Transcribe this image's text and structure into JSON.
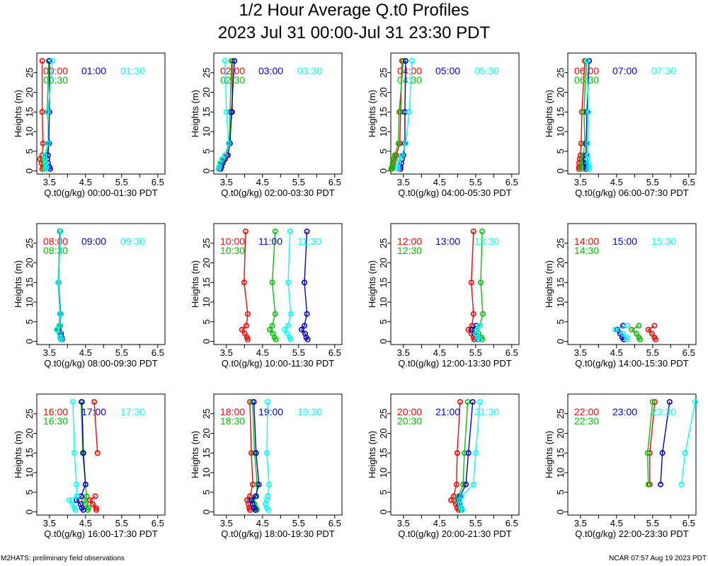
{
  "title": "1/2 Hour Average Q.t0 Profiles",
  "subtitle": "2023 Jul 31 00:00-Jul 31 23:30 PDT",
  "footer": {
    "left": "M2HATS: preliminary field observations",
    "right": "NCAR 07:57 Aug 19 2023 PDT"
  },
  "chart_data": [
    {
      "type": "line",
      "xlabel": "Q.t0(g/kg) 00:00-01:30 PDT",
      "ylabel": "Heights (m)",
      "xlim": [
        3.15,
        6.7
      ],
      "ylim": [
        -0.8,
        30
      ],
      "xticks": [
        3.5,
        4.5,
        5.5,
        6.5
      ],
      "yticks": [
        0,
        5,
        10,
        15,
        20,
        25
      ],
      "y": [
        0.5,
        1,
        2,
        3,
        4,
        7,
        15,
        28
      ],
      "series": [
        {
          "name": "00:00",
          "color": "#ff0000",
          "x": [
            3.3,
            3.32,
            3.28,
            3.24,
            3.3,
            3.32,
            3.3,
            3.3
          ]
        },
        {
          "name": "00:30",
          "color": "#00c400",
          "x": [
            3.36,
            3.4,
            3.36,
            3.34,
            3.4,
            3.5,
            3.44,
            3.48
          ]
        },
        {
          "name": "01:00",
          "color": "#0000cc",
          "x": [
            3.52,
            3.5,
            3.46,
            3.44,
            3.46,
            3.48,
            3.5,
            3.5
          ]
        },
        {
          "name": "01:30",
          "color": "#00ffff",
          "x": [
            3.4,
            3.42,
            3.4,
            3.38,
            3.36,
            3.46,
            3.46,
            3.58
          ]
        }
      ]
    },
    {
      "type": "line",
      "xlabel": "Q.t0(g/kg) 02:00-03:30 PDT",
      "ylabel": "Heights (m)",
      "xlim": [
        3.15,
        6.7
      ],
      "ylim": [
        -0.8,
        30
      ],
      "xticks": [
        3.5,
        4.5,
        5.5,
        6.5
      ],
      "yticks": [
        0,
        5,
        10,
        15,
        20,
        25
      ],
      "y": [
        0.5,
        1,
        2,
        3,
        4,
        7,
        15,
        28
      ],
      "series": [
        {
          "name": "02:00",
          "color": "#ff0000",
          "x": [
            3.3,
            3.32,
            3.36,
            3.42,
            3.5,
            3.56,
            3.66,
            3.66
          ]
        },
        {
          "name": "02:30",
          "color": "#00c400",
          "x": [
            3.28,
            3.3,
            3.34,
            3.4,
            3.46,
            3.58,
            3.6,
            3.64
          ]
        },
        {
          "name": "03:00",
          "color": "#0000cc",
          "x": [
            3.34,
            3.36,
            3.4,
            3.46,
            3.54,
            3.6,
            3.64,
            3.72
          ]
        },
        {
          "name": "03:30",
          "color": "#00ffff",
          "x": [
            3.28,
            3.3,
            3.32,
            3.38,
            3.46,
            3.56,
            3.5,
            3.46
          ]
        }
      ]
    },
    {
      "type": "line",
      "xlabel": "Q.t0(g/kg) 04:00-05:30 PDT",
      "ylabel": "Heights (m)",
      "xlim": [
        3.15,
        6.7
      ],
      "ylim": [
        -0.8,
        30
      ],
      "xticks": [
        3.5,
        4.5,
        5.5,
        6.5
      ],
      "yticks": [
        0,
        5,
        10,
        15,
        20,
        25
      ],
      "y": [
        0.5,
        1,
        2,
        3,
        4,
        7,
        15,
        28
      ],
      "series": [
        {
          "name": "04:00",
          "color": "#ff0000",
          "x": [
            3.18,
            3.2,
            3.22,
            3.24,
            3.3,
            3.4,
            3.42,
            3.46
          ]
        },
        {
          "name": "04:30",
          "color": "#00c400",
          "x": [
            3.16,
            3.18,
            3.2,
            3.22,
            3.26,
            3.36,
            3.38,
            3.5
          ]
        },
        {
          "name": "05:00",
          "color": "#0000cc",
          "x": [
            3.42,
            3.42,
            3.44,
            3.46,
            3.5,
            3.54,
            3.54,
            3.56
          ]
        },
        {
          "name": "05:30",
          "color": "#00ffff",
          "x": [
            3.34,
            3.34,
            3.36,
            3.4,
            3.46,
            3.56,
            3.66,
            3.74
          ]
        }
      ]
    },
    {
      "type": "line",
      "xlabel": "Q.t0(g/kg) 06:00-07:30 PDT",
      "ylabel": "Heights (m)",
      "xlim": [
        3.15,
        6.7
      ],
      "ylim": [
        -0.8,
        30
      ],
      "xticks": [
        3.5,
        4.5,
        5.5,
        6.5
      ],
      "yticks": [
        0,
        5,
        10,
        15,
        20,
        25
      ],
      "y": [
        0.5,
        1,
        2,
        3,
        4,
        7,
        15,
        28
      ],
      "series": [
        {
          "name": "06:00",
          "color": "#ff0000",
          "x": [
            3.46,
            3.46,
            3.46,
            3.48,
            3.5,
            3.52,
            3.54,
            3.62
          ]
        },
        {
          "name": "06:30",
          "color": "#00c400",
          "x": [
            3.54,
            3.54,
            3.56,
            3.56,
            3.58,
            3.62,
            3.6,
            3.66
          ]
        },
        {
          "name": "07:00",
          "color": "#0000cc",
          "x": [
            3.66,
            3.66,
            3.64,
            3.64,
            3.66,
            3.66,
            3.68,
            3.74
          ]
        },
        {
          "name": "07:30",
          "color": "#00ffff",
          "x": [
            3.74,
            3.74,
            3.72,
            3.7,
            3.7,
            3.7,
            3.72,
            3.68
          ]
        }
      ]
    },
    {
      "type": "line",
      "xlabel": "Q.t0(g/kg) 08:00-09:30 PDT",
      "ylabel": "Heights (m)",
      "xlim": [
        3.15,
        6.7
      ],
      "ylim": [
        -0.8,
        30
      ],
      "xticks": [
        3.5,
        4.5,
        5.5,
        6.5
      ],
      "yticks": [
        0,
        5,
        10,
        15,
        20,
        25
      ],
      "y": [
        0.5,
        1,
        2,
        3,
        4,
        7,
        15,
        28
      ],
      "series": [
        {
          "name": "08:00",
          "color": "#ff0000",
          "x": [
            3.84,
            3.82,
            3.8,
            3.72,
            3.78,
            3.8,
            3.75,
            3.8
          ]
        },
        {
          "name": "08:30",
          "color": "#00c400",
          "x": [
            3.82,
            3.8,
            3.78,
            3.73,
            3.77,
            3.79,
            3.74,
            3.79
          ]
        },
        {
          "name": "09:00",
          "color": "#0000cc",
          "x": [
            3.85,
            3.84,
            3.82,
            3.76,
            3.8,
            3.81,
            3.75,
            3.8
          ]
        },
        {
          "name": "09:30",
          "color": "#00ffff",
          "x": [
            3.83,
            3.81,
            3.79,
            3.7,
            3.79,
            3.8,
            3.74,
            3.81
          ]
        }
      ]
    },
    {
      "type": "line",
      "xlabel": "Q.t0(g/kg) 10:00-11:30 PDT",
      "ylabel": "Heights (m)",
      "xlim": [
        3.15,
        6.7
      ],
      "ylim": [
        -0.8,
        30
      ],
      "xticks": [
        3.5,
        4.5,
        5.5,
        6.5
      ],
      "yticks": [
        0,
        5,
        10,
        15,
        20,
        25
      ],
      "y": [
        0.5,
        1,
        2,
        3,
        4,
        7,
        15,
        28
      ],
      "series": [
        {
          "name": "10:00",
          "color": "#ff0000",
          "x": [
            4.09,
            4.07,
            4.01,
            3.93,
            4.05,
            4.09,
            3.99,
            4.03
          ]
        },
        {
          "name": "10:30",
          "color": "#00c400",
          "x": [
            4.87,
            4.83,
            4.79,
            4.7,
            4.77,
            4.85,
            4.77,
            4.85
          ]
        },
        {
          "name": "11:00",
          "color": "#0000cc",
          "x": [
            5.75,
            5.71,
            5.68,
            5.58,
            5.66,
            5.73,
            5.66,
            5.73
          ]
        },
        {
          "name": "11:30",
          "color": "#00ffff",
          "x": [
            5.28,
            5.25,
            5.19,
            5.11,
            5.21,
            5.28,
            5.21,
            5.26
          ]
        }
      ]
    },
    {
      "type": "line",
      "xlabel": "Q.t0(g/kg) 12:00-13:30 PDT",
      "ylabel": "Heights (m)",
      "xlim": [
        3.15,
        6.7
      ],
      "ylim": [
        -0.8,
        30
      ],
      "xticks": [
        3.5,
        4.5,
        5.5,
        6.5
      ],
      "yticks": [
        0,
        5,
        10,
        15,
        20,
        25
      ],
      "y": [
        0.5,
        1,
        2,
        3,
        4,
        7,
        15,
        28
      ],
      "series": [
        {
          "name": "12:00",
          "color": "#ff0000",
          "x": [
            5.46,
            5.44,
            5.38,
            5.3,
            5.4,
            5.44,
            5.38,
            5.44
          ]
        },
        {
          "name": "12:30",
          "color": "#00c400",
          "x": [
            5.68,
            5.66,
            5.58,
            5.52,
            5.62,
            5.7,
            5.64,
            5.68
          ]
        },
        {
          "name": "13:00",
          "color": "#0000cc",
          "x": [
            5.58,
            5.55,
            5.48,
            5.4,
            5.52,
            null,
            null,
            null
          ]
        },
        {
          "name": "13:30",
          "color": "#00ffff",
          "x": [
            5.6,
            5.56,
            5.5,
            5.54,
            5.62,
            null,
            null,
            null
          ]
        }
      ]
    },
    {
      "type": "line",
      "xlabel": "Q.t0(g/kg) 14:00-15:30 PDT",
      "ylabel": "Heights (m)",
      "xlim": [
        3.15,
        6.7
      ],
      "ylim": [
        -0.8,
        30
      ],
      "xticks": [
        3.5,
        4.5,
        5.5,
        6.5
      ],
      "yticks": [
        0,
        5,
        10,
        15,
        20,
        25
      ],
      "y": [
        0.5,
        1,
        2,
        3,
        4,
        7,
        15,
        28
      ],
      "series": [
        {
          "name": "14:00",
          "color": "#ff0000",
          "x": [
            5.58,
            5.55,
            5.48,
            5.38,
            5.55,
            null,
            null,
            null
          ]
        },
        {
          "name": "14:30",
          "color": "#00c400",
          "x": [
            5.15,
            5.12,
            5.05,
            4.92,
            5.12,
            null,
            null,
            null
          ]
        },
        {
          "name": "15:00",
          "color": "#0000cc",
          "x": [
            4.7,
            4.66,
            4.6,
            4.52,
            4.68,
            null,
            null,
            null
          ]
        },
        {
          "name": "15:30",
          "color": "#00ffff",
          "x": [
            4.8,
            4.78,
            4.68,
            4.46,
            4.8,
            null,
            null,
            null
          ]
        }
      ]
    },
    {
      "type": "line",
      "xlabel": "Q.t0(g/kg) 16:00-17:30 PDT",
      "ylabel": "Heights (m)",
      "xlim": [
        3.15,
        6.7
      ],
      "ylim": [
        -0.8,
        30
      ],
      "xticks": [
        3.5,
        4.5,
        5.5,
        6.5
      ],
      "yticks": [
        0,
        5,
        10,
        15,
        20,
        25
      ],
      "y": [
        0.5,
        1,
        2,
        3,
        4,
        7,
        15,
        28
      ],
      "series": [
        {
          "name": "16:00",
          "color": "#ff0000",
          "x": [
            4.8,
            4.79,
            4.7,
            4.62,
            4.77,
            null,
            4.83,
            4.74
          ]
        },
        {
          "name": "16:30",
          "color": "#00c400",
          "x": [
            4.56,
            4.58,
            4.5,
            4.46,
            4.53,
            4.5,
            4.42,
            4.38
          ]
        },
        {
          "name": "17:00",
          "color": "#0000cc",
          "x": [
            4.44,
            4.4,
            4.36,
            4.25,
            4.38,
            4.5,
            4.44,
            4.4
          ]
        },
        {
          "name": "17:30",
          "color": "#00ffff",
          "x": [
            4.22,
            4.19,
            4.14,
            4.05,
            4.26,
            4.25,
            4.19,
            4.15
          ]
        }
      ]
    },
    {
      "type": "line",
      "xlabel": "Q.t0(g/kg) 18:00-19:30 PDT",
      "ylabel": "Heights (m)",
      "xlim": [
        3.15,
        6.7
      ],
      "ylim": [
        -0.8,
        30
      ],
      "xticks": [
        3.5,
        4.5,
        5.5,
        6.5
      ],
      "yticks": [
        0,
        5,
        10,
        15,
        20,
        25
      ],
      "y": [
        0.5,
        1,
        2,
        3,
        4,
        7,
        15,
        28
      ],
      "series": [
        {
          "name": "18:00",
          "color": "#ff0000",
          "x": [
            4.15,
            4.13,
            4.11,
            4.07,
            4.15,
            4.23,
            4.19,
            4.15
          ]
        },
        {
          "name": "18:30",
          "color": "#00c400",
          "x": [
            4.34,
            4.32,
            4.28,
            4.22,
            4.33,
            4.35,
            4.28,
            4.22
          ]
        },
        {
          "name": "19:00",
          "color": "#0000cc",
          "x": [
            4.3,
            4.27,
            4.23,
            4.19,
            4.31,
            4.4,
            4.32,
            4.26
          ]
        },
        {
          "name": "19:30",
          "color": "#00ffff",
          "x": [
            4.66,
            4.62,
            4.58,
            4.62,
            4.64,
            4.68,
            4.62,
            4.64
          ]
        }
      ]
    },
    {
      "type": "line",
      "xlabel": "Q.t0(g/kg) 20:00-21:30 PDT",
      "ylabel": "Heights (m)",
      "xlim": [
        3.15,
        6.7
      ],
      "ylim": [
        -0.8,
        30
      ],
      "xticks": [
        3.5,
        4.5,
        5.5,
        6.5
      ],
      "yticks": [
        0,
        5,
        10,
        15,
        20,
        25
      ],
      "y": [
        0.5,
        1,
        2,
        3,
        4,
        7,
        15,
        28
      ],
      "series": [
        {
          "name": "20:00",
          "color": "#ff0000",
          "x": [
            5.03,
            4.99,
            4.95,
            4.82,
            4.89,
            4.97,
            4.99,
            5.07
          ]
        },
        {
          "name": "20:30",
          "color": "#00c400",
          "x": [
            5.1,
            5.08,
            5.05,
            4.99,
            5.03,
            5.15,
            5.19,
            5.28
          ]
        },
        {
          "name": "21:00",
          "color": "#0000cc",
          "x": [
            5.12,
            5.11,
            5.05,
            5.03,
            5.07,
            5.23,
            5.3,
            5.42
          ]
        },
        {
          "name": "21:30",
          "color": "#00ffff",
          "x": [
            5.13,
            5.11,
            5.07,
            5.05,
            5.11,
            5.44,
            5.5,
            5.62
          ]
        }
      ]
    },
    {
      "type": "line",
      "xlabel": "Q.t0(g/kg) 22:00-23:30 PDT",
      "ylabel": "Heights (m)",
      "xlim": [
        3.15,
        6.7
      ],
      "ylim": [
        -0.8,
        30
      ],
      "xticks": [
        3.5,
        4.5,
        5.5,
        6.5
      ],
      "yticks": [
        0,
        5,
        10,
        15,
        20,
        25
      ],
      "y": [
        0.5,
        1,
        2,
        3,
        4,
        7,
        15,
        28
      ],
      "series": [
        {
          "name": "22:00",
          "color": "#ff0000",
          "x": [
            null,
            null,
            null,
            null,
            null,
            5.42,
            5.42,
            5.56
          ]
        },
        {
          "name": "22:30",
          "color": "#00c400",
          "x": [
            null,
            null,
            null,
            null,
            null,
            5.38,
            5.36,
            5.5
          ]
        },
        {
          "name": "23:00",
          "color": "#0000cc",
          "x": [
            null,
            null,
            null,
            null,
            null,
            5.72,
            5.77,
            5.97
          ]
        },
        {
          "name": "23:30",
          "color": "#00ffff",
          "x": [
            null,
            null,
            null,
            null,
            null,
            6.3,
            6.4,
            6.68
          ]
        }
      ]
    }
  ]
}
